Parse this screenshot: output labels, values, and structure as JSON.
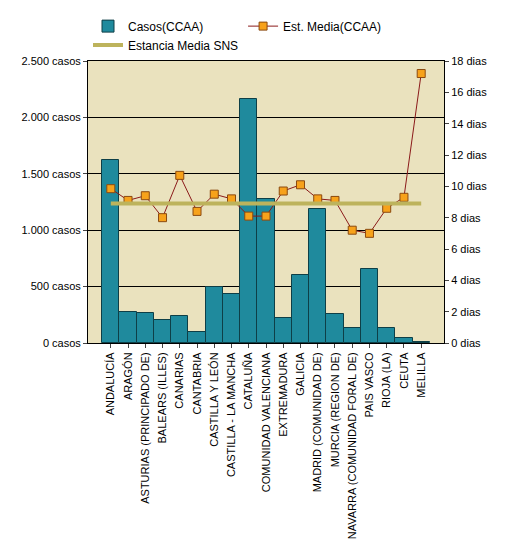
{
  "chart_data": {
    "type": "bar",
    "categories": [
      "ANDALUCÍA",
      "ARAGÓN",
      "ASTURIAS (PRINCIPADO DE)",
      "BALEARS (ILLES)",
      "CANARIAS",
      "CANTABRIA",
      "CASTILLA Y LEÓN",
      "CASTILLA - LA MANCHA",
      "CATALUÑA",
      "COMUNIDAD VALENCIANA",
      "EXTREMADURA",
      "GALICIA",
      "MADRID (COMUNIDAD DE)",
      "MURCIA (REGION DE)",
      "NAVARRA (COMUNIDAD FORAL DE)",
      "PAIS VASCO",
      "RIOJA (LA)",
      "CEUTA",
      "MELILLA"
    ],
    "series": [
      {
        "name": "Casos(CCAA)",
        "type": "bar",
        "color": "#1F8A9D",
        "values": [
          1625,
          275,
          270,
          205,
          240,
          95,
          500,
          435,
          2165,
          1280,
          225,
          605,
          1190,
          255,
          130,
          660,
          130,
          40,
          10
        ]
      },
      {
        "name": "Est. Media(CCAA)",
        "type": "line",
        "axis": "y2",
        "color": "#8B1A1A",
        "marker": "square",
        "line_style": "solid",
        "values": [
          9.85,
          9.1,
          9.4,
          8.0,
          10.7,
          8.4,
          9.5,
          9.2,
          8.1,
          8.1,
          9.7,
          10.1,
          9.2,
          9.1,
          7.2,
          7.0,
          8.6,
          9.3,
          17.2
        ]
      },
      {
        "name": "Estancia Media SNS",
        "type": "line",
        "axis": "y2",
        "color": "#BDB35C",
        "line_style": "solid",
        "values": [
          8.9,
          8.9,
          8.9,
          8.9,
          8.9,
          8.9,
          8.9,
          8.9,
          8.9,
          8.9,
          8.9,
          8.9,
          8.9,
          8.9,
          8.9,
          8.9,
          8.9,
          8.9,
          8.9
        ]
      }
    ],
    "ylim": [
      0,
      2500
    ],
    "yticks": [
      {
        "value": 0,
        "label": "0 casos"
      },
      {
        "value": 500,
        "label": "500 casos"
      },
      {
        "value": 1000,
        "label": "1.000 casos"
      },
      {
        "value": 1500,
        "label": "1.500 casos"
      },
      {
        "value": 2000,
        "label": "2.000 casos"
      },
      {
        "value": 2500,
        "label": "2.500 casos"
      }
    ],
    "y2lim": [
      0,
      18
    ],
    "y2ticks": [
      {
        "value": 0,
        "label": "0 dias"
      },
      {
        "value": 2,
        "label": "2 dias"
      },
      {
        "value": 4,
        "label": "4 dias"
      },
      {
        "value": 6,
        "label": "6 dias"
      },
      {
        "value": 8,
        "label": "8 dias"
      },
      {
        "value": 10,
        "label": "10 dias"
      },
      {
        "value": 12,
        "label": "12 dias"
      },
      {
        "value": 14,
        "label": "14 dias"
      },
      {
        "value": 16,
        "label": "16 dias"
      },
      {
        "value": 18,
        "label": "18 dias"
      }
    ],
    "grid": true,
    "legend": "top"
  }
}
